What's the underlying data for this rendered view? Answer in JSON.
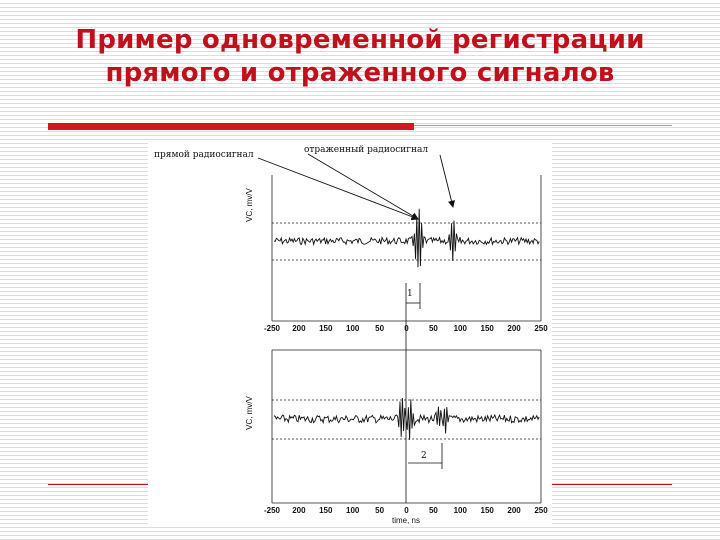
{
  "slide": {
    "title_line1": "Пример одновременной регистрации",
    "title_line2": "прямого и отраженного сигналов"
  },
  "figure": {
    "annotation_direct": "прямой радиосигнал",
    "annotation_reflected": "отраженный радиосигнал",
    "interval_label_top": "1",
    "interval_label_bottom": "2",
    "ylabel_top": "VC, mv/V",
    "ylabel_bottom": "VC, mv/V",
    "xlabel": "time, ns",
    "x_ticks": [
      "-250",
      "200",
      "150",
      "100",
      "50",
      "0",
      "50",
      "100",
      "150",
      "200",
      "250"
    ]
  },
  "colors": {
    "title": "#c0101b",
    "accent": "#d4161f"
  }
}
